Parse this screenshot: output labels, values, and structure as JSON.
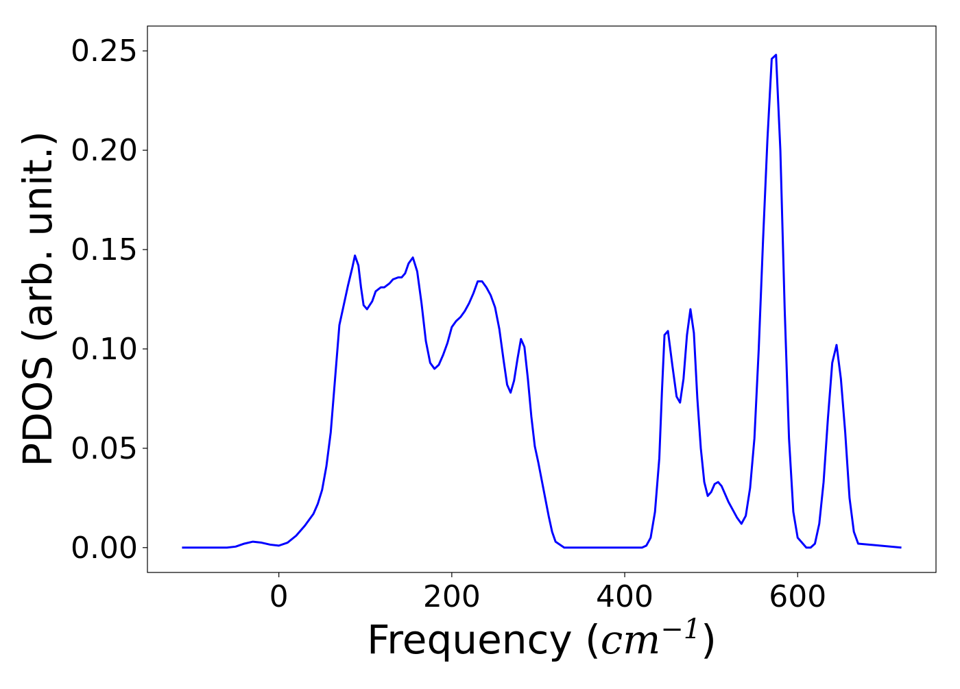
{
  "chart_data": {
    "type": "line",
    "title": "",
    "xlabel": {
      "text": "Frequency (",
      "math_base": "cm",
      "math_exp": "−1",
      "close": ")"
    },
    "ylabel": "PDOS (arb. unit.)",
    "xlim": [
      -152,
      760
    ],
    "ylim": [
      -0.0125,
      0.2625
    ],
    "xticks": [
      0,
      200,
      400,
      600
    ],
    "xtick_labels": [
      "0",
      "200",
      "400",
      "600"
    ],
    "yticks": [
      0.0,
      0.05,
      0.1,
      0.15,
      0.2,
      0.25
    ],
    "ytick_labels": [
      "0.00",
      "0.05",
      "0.10",
      "0.15",
      "0.20",
      "0.25"
    ],
    "grid": false,
    "legend": "none",
    "series": [
      {
        "color": "#0000ff",
        "x": [
          -112,
          -60,
          -50,
          -40,
          -30,
          -20,
          -10,
          0,
          10,
          20,
          30,
          40,
          45,
          50,
          55,
          60,
          65,
          70,
          75,
          80,
          85,
          88,
          92,
          95,
          98,
          102,
          108,
          112,
          118,
          122,
          128,
          132,
          138,
          142,
          146,
          150,
          155,
          160,
          165,
          170,
          175,
          180,
          185,
          190,
          195,
          200,
          205,
          210,
          215,
          220,
          225,
          230,
          235,
          240,
          245,
          250,
          255,
          260,
          264,
          268,
          272,
          276,
          280,
          284,
          288,
          292,
          296,
          300,
          304,
          308,
          312,
          316,
          320,
          330,
          420,
          425,
          430,
          435,
          440,
          443,
          446,
          450,
          455,
          460,
          464,
          468,
          472,
          476,
          480,
          484,
          488,
          492,
          496,
          500,
          504,
          508,
          512,
          516,
          520,
          525,
          530,
          535,
          540,
          545,
          550,
          555,
          560,
          565,
          570,
          575,
          580,
          585,
          590,
          595,
          600,
          610,
          615,
          620,
          625,
          630,
          635,
          640,
          645,
          650,
          655,
          660,
          665,
          670,
          720
        ],
        "y": [
          0.0,
          0.0,
          0.0005,
          0.002,
          0.003,
          0.0025,
          0.0015,
          0.001,
          0.0025,
          0.006,
          0.011,
          0.017,
          0.022,
          0.029,
          0.041,
          0.058,
          0.085,
          0.112,
          0.122,
          0.132,
          0.141,
          0.147,
          0.142,
          0.131,
          0.122,
          0.12,
          0.124,
          0.129,
          0.131,
          0.131,
          0.133,
          0.135,
          0.136,
          0.136,
          0.138,
          0.143,
          0.146,
          0.139,
          0.123,
          0.104,
          0.093,
          0.09,
          0.092,
          0.097,
          0.103,
          0.111,
          0.114,
          0.116,
          0.119,
          0.123,
          0.128,
          0.134,
          0.134,
          0.131,
          0.127,
          0.121,
          0.11,
          0.094,
          0.082,
          0.078,
          0.084,
          0.095,
          0.105,
          0.101,
          0.085,
          0.066,
          0.051,
          0.043,
          0.034,
          0.025,
          0.016,
          0.008,
          0.003,
          0.0,
          0.0,
          0.001,
          0.005,
          0.018,
          0.045,
          0.078,
          0.107,
          0.109,
          0.092,
          0.076,
          0.073,
          0.085,
          0.107,
          0.12,
          0.108,
          0.075,
          0.05,
          0.033,
          0.026,
          0.028,
          0.032,
          0.033,
          0.031,
          0.027,
          0.023,
          0.019,
          0.015,
          0.012,
          0.016,
          0.03,
          0.055,
          0.1,
          0.155,
          0.205,
          0.246,
          0.248,
          0.2,
          0.12,
          0.055,
          0.018,
          0.005,
          0.0,
          0.0,
          0.002,
          0.012,
          0.033,
          0.065,
          0.093,
          0.102,
          0.085,
          0.058,
          0.025,
          0.008,
          0.002,
          0.0
        ]
      }
    ]
  }
}
